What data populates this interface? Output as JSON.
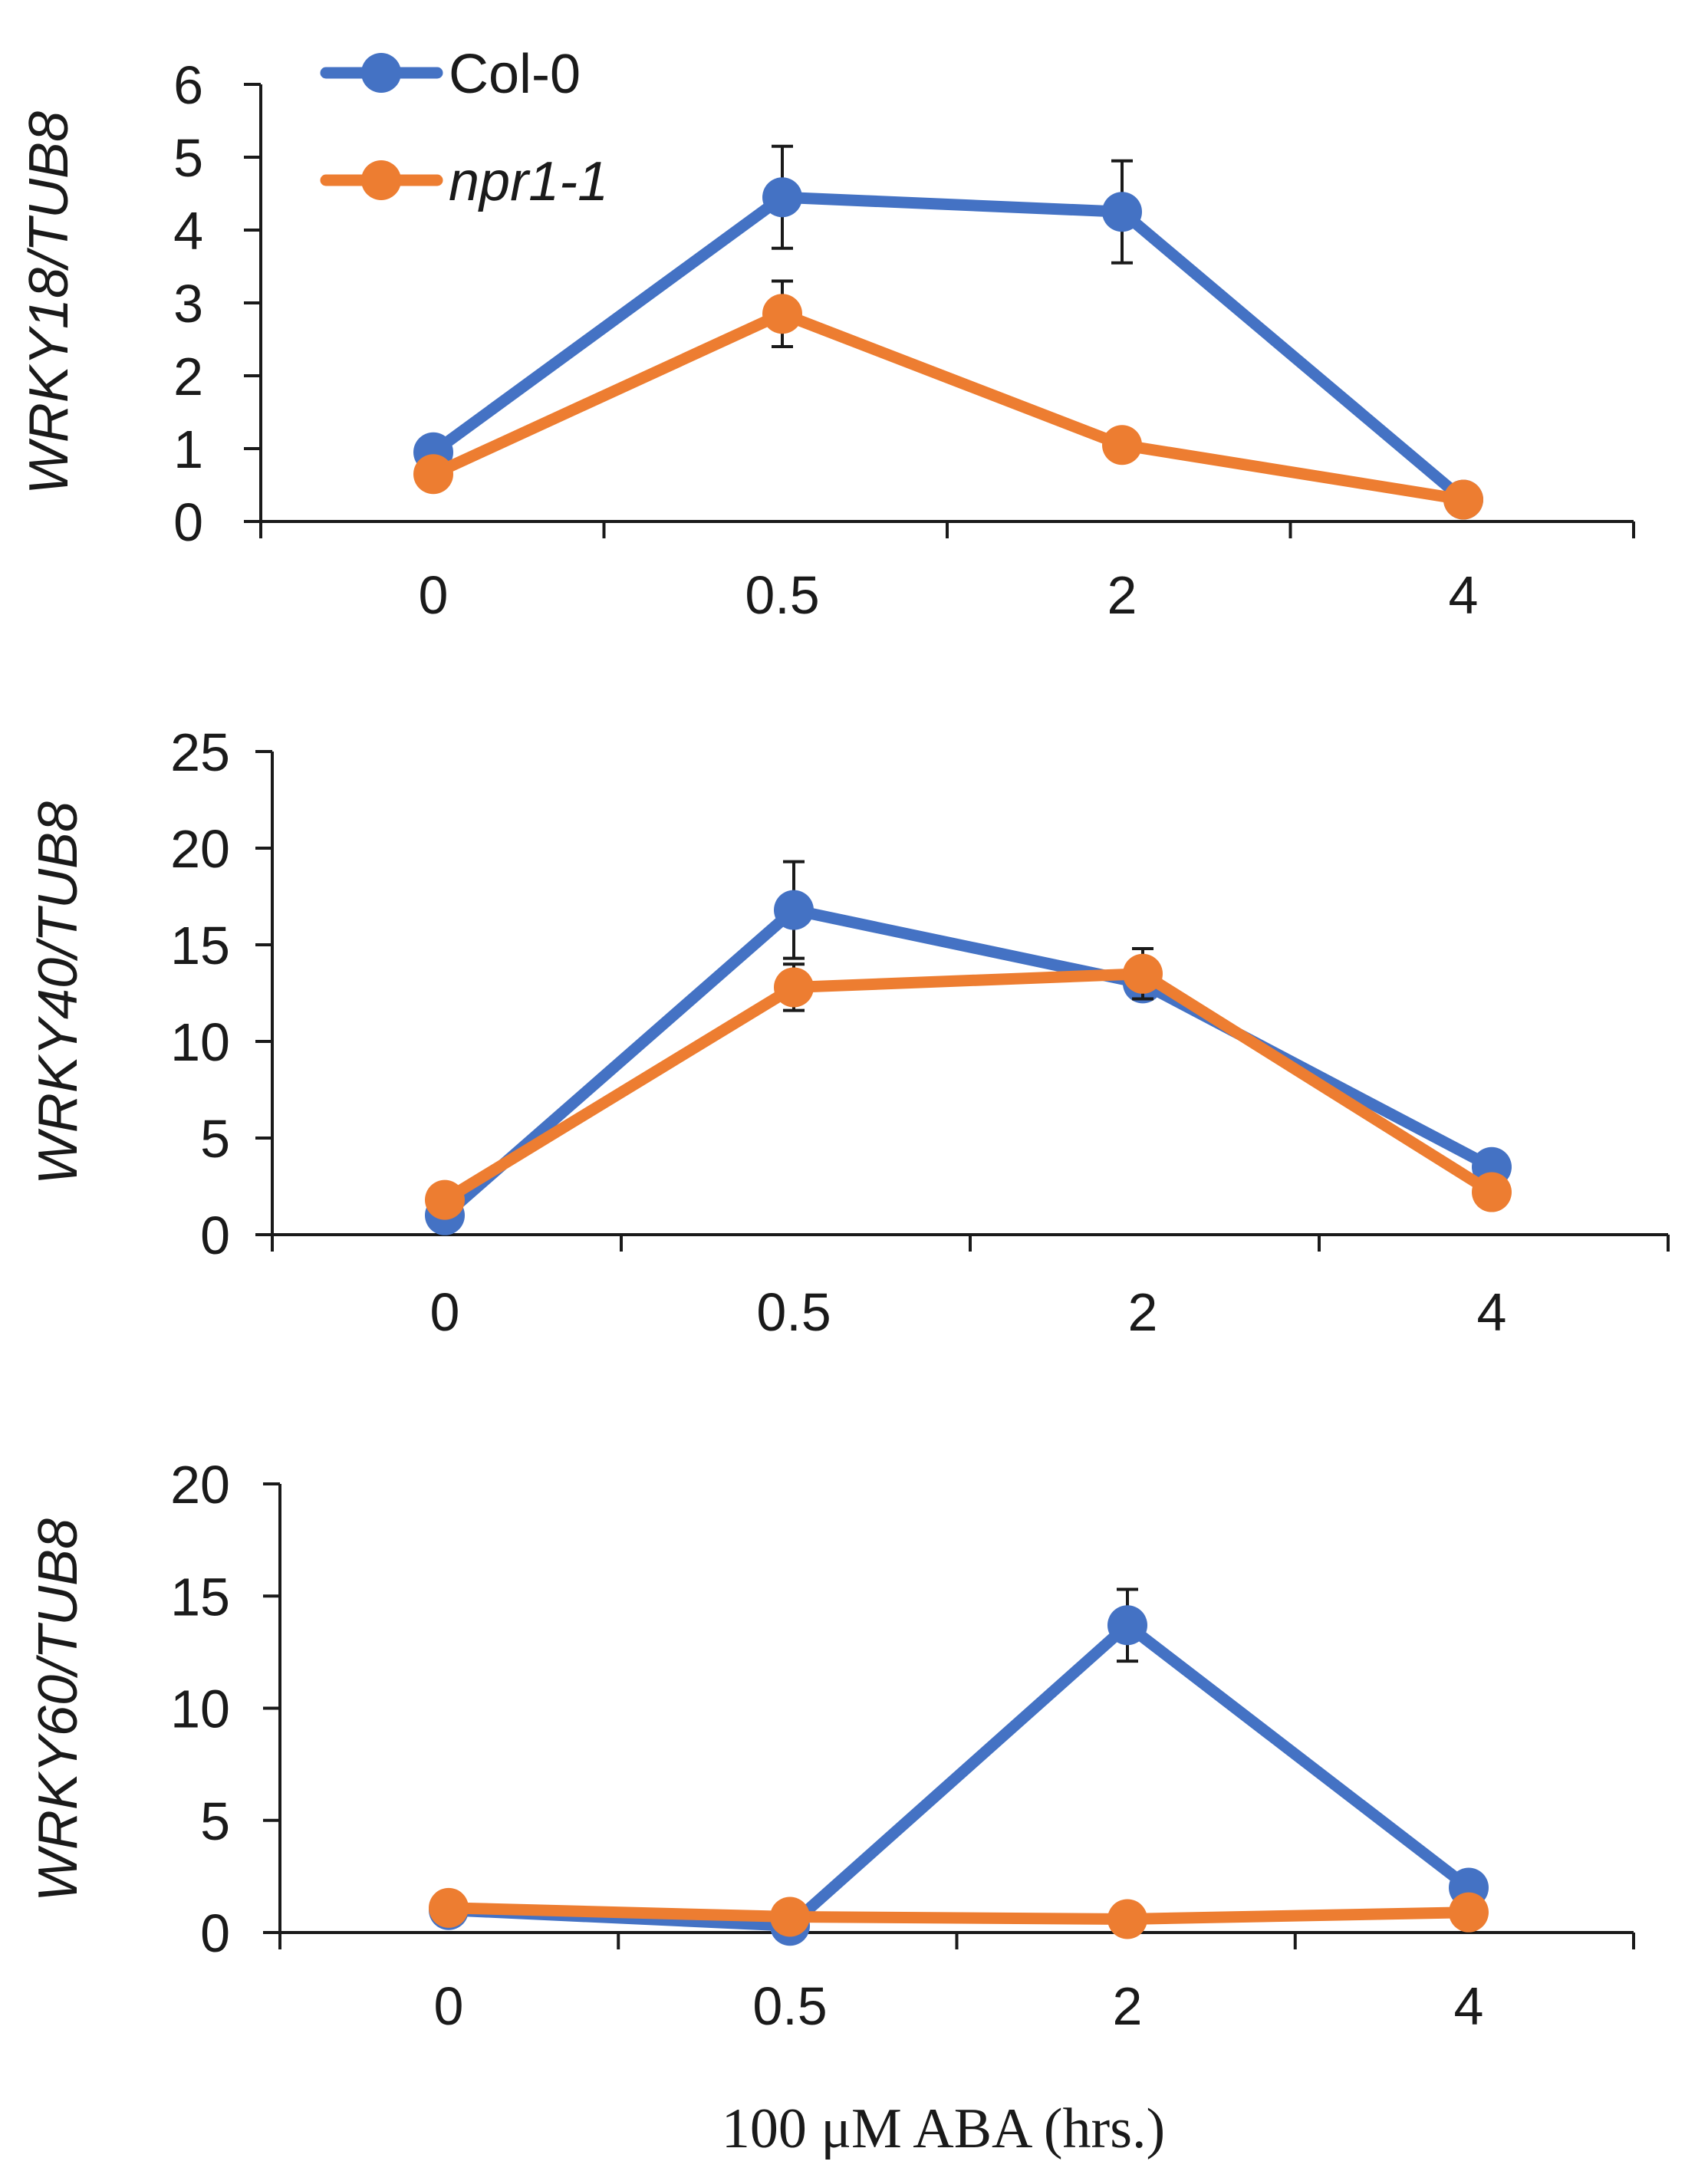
{
  "colors": {
    "col0": "#4472C4",
    "npr1": "#ED7D31",
    "axis": "#1a1a1a"
  },
  "legend": [
    {
      "label": "Col-0",
      "color": "#4472C4",
      "italic": false
    },
    {
      "label": "npr1-1",
      "color": "#ED7D31",
      "italic": true
    }
  ],
  "xlabel": "100 μM ABA (hrs.)",
  "chart_data": [
    {
      "type": "line",
      "ylabel": "WRKY18/TUB8",
      "categories": [
        "0",
        "0.5",
        "2",
        "4"
      ],
      "ylim": [
        0,
        6
      ],
      "yticks": [
        "0",
        "1",
        "2",
        "3",
        "4",
        "5",
        "6"
      ],
      "series": [
        {
          "name": "Col-0",
          "values": [
            0.95,
            4.45,
            4.25,
            0.3
          ],
          "err": [
            0,
            0.7,
            0.7,
            0
          ]
        },
        {
          "name": "npr1-1",
          "values": [
            0.65,
            2.85,
            1.05,
            0.3
          ],
          "err": [
            0,
            0.45,
            0,
            0
          ]
        }
      ]
    },
    {
      "type": "line",
      "ylabel": "WRKY40/TUB8",
      "categories": [
        "0",
        "0.5",
        "2",
        "4"
      ],
      "ylim": [
        0,
        25
      ],
      "yticks": [
        "0",
        "5",
        "10",
        "15",
        "20",
        "25"
      ],
      "series": [
        {
          "name": "Col-0",
          "values": [
            1.0,
            16.8,
            13.0,
            3.5
          ],
          "err": [
            0,
            2.5,
            0,
            0
          ]
        },
        {
          "name": "npr1-1",
          "values": [
            1.8,
            12.8,
            13.5,
            2.2
          ],
          "err": [
            0,
            1.2,
            1.3,
            0
          ]
        }
      ]
    },
    {
      "type": "line",
      "ylabel": "WRKY60/TUB8",
      "categories": [
        "0",
        "0.5",
        "2",
        "4"
      ],
      "ylim": [
        0,
        20
      ],
      "yticks": [
        "0",
        "5",
        "10",
        "15",
        "20"
      ],
      "series": [
        {
          "name": "Col-0",
          "values": [
            1.0,
            0.3,
            13.7,
            2.0
          ],
          "err": [
            0,
            0,
            1.6,
            0
          ]
        },
        {
          "name": "npr1-1",
          "values": [
            1.1,
            0.7,
            0.6,
            0.9
          ],
          "err": [
            0,
            0,
            0,
            0
          ]
        }
      ]
    }
  ]
}
